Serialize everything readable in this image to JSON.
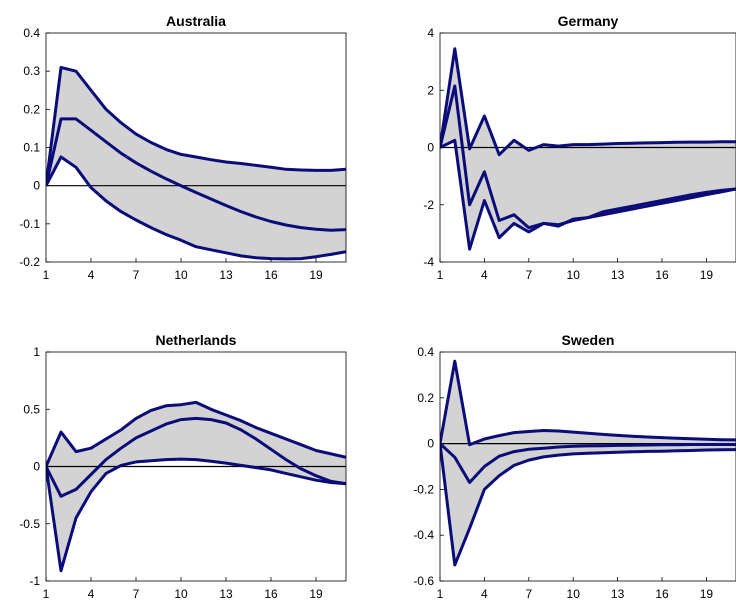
{
  "chart_data": [
    {
      "type": "line",
      "title": "Australia",
      "x": [
        1,
        2,
        3,
        4,
        5,
        6,
        7,
        8,
        9,
        10,
        11,
        12,
        13,
        14,
        15,
        16,
        17,
        18,
        19,
        20,
        21
      ],
      "xticks": [
        1,
        4,
        7,
        10,
        13,
        16,
        19
      ],
      "xlim": [
        1,
        21
      ],
      "ylim": [
        -0.2,
        0.4
      ],
      "yticks": [
        -0.2,
        -0.1,
        0,
        0.1,
        0.2,
        0.3,
        0.4
      ],
      "ytick_labels": [
        "-0.2",
        "-0.1",
        "0",
        "0.1",
        "0.2",
        "0.3",
        "0.4"
      ],
      "series": [
        {
          "values": [
            0,
            0.31,
            0.3,
            0.25,
            0.2,
            0.165,
            0.135,
            0.113,
            0.095,
            0.082,
            0.075,
            0.068,
            0.062,
            0.058,
            0.053,
            0.048,
            0.043,
            0.041,
            0.04,
            0.04,
            0.043
          ]
        },
        {
          "values": [
            0,
            0.175,
            0.175,
            0.145,
            0.115,
            0.085,
            0.06,
            0.038,
            0.018,
            0.0,
            -0.018,
            -0.035,
            -0.052,
            -0.068,
            -0.082,
            -0.094,
            -0.103,
            -0.11,
            -0.114,
            -0.117,
            -0.115
          ]
        },
        {
          "values": [
            0,
            0.075,
            0.048,
            -0.005,
            -0.04,
            -0.068,
            -0.09,
            -0.11,
            -0.128,
            -0.143,
            -0.16,
            -0.168,
            -0.176,
            -0.184,
            -0.189,
            -0.191,
            -0.192,
            -0.191,
            -0.186,
            -0.18,
            -0.173
          ]
        }
      ]
    },
    {
      "type": "line",
      "title": "Germany",
      "x": [
        1,
        2,
        3,
        4,
        5,
        6,
        7,
        8,
        9,
        10,
        11,
        12,
        13,
        14,
        15,
        16,
        17,
        18,
        19,
        20,
        21
      ],
      "xticks": [
        1,
        4,
        7,
        10,
        13,
        16,
        19
      ],
      "xlim": [
        1,
        21
      ],
      "ylim": [
        -4,
        4
      ],
      "yticks": [
        -4,
        -2,
        0,
        2,
        4
      ],
      "ytick_labels": [
        "-4",
        "-2",
        "0",
        "2",
        "4"
      ],
      "series": [
        {
          "values": [
            0,
            3.45,
            -0.05,
            1.1,
            -0.25,
            0.25,
            -0.1,
            0.1,
            0.05,
            0.1,
            0.1,
            0.12,
            0.14,
            0.15,
            0.16,
            0.17,
            0.18,
            0.19,
            0.19,
            0.2,
            0.2
          ]
        },
        {
          "values": [
            0,
            2.15,
            -2.0,
            -0.85,
            -2.55,
            -2.35,
            -2.8,
            -2.65,
            -2.7,
            -2.55,
            -2.45,
            -2.35,
            -2.25,
            -2.15,
            -2.05,
            -1.95,
            -1.85,
            -1.75,
            -1.65,
            -1.55,
            -1.45
          ]
        },
        {
          "values": [
            0,
            0.25,
            -3.55,
            -1.85,
            -3.15,
            -2.65,
            -2.95,
            -2.65,
            -2.75,
            -2.5,
            -2.45,
            -2.25,
            -2.15,
            -2.05,
            -1.95,
            -1.85,
            -1.75,
            -1.65,
            -1.57,
            -1.5,
            -1.45
          ]
        }
      ]
    },
    {
      "type": "line",
      "title": "Netherlands",
      "x": [
        1,
        2,
        3,
        4,
        5,
        6,
        7,
        8,
        9,
        10,
        11,
        12,
        13,
        14,
        15,
        16,
        17,
        18,
        19,
        20,
        21
      ],
      "xticks": [
        1,
        4,
        7,
        10,
        13,
        16,
        19
      ],
      "xlim": [
        1,
        21
      ],
      "ylim": [
        -1,
        1
      ],
      "yticks": [
        -1,
        -0.5,
        0,
        0.5,
        1
      ],
      "ytick_labels": [
        "-1",
        "-0.5",
        "0",
        "0.5",
        "1"
      ],
      "series": [
        {
          "values": [
            0,
            0.3,
            0.13,
            0.16,
            0.24,
            0.32,
            0.42,
            0.49,
            0.53,
            0.54,
            0.56,
            0.5,
            0.45,
            0.4,
            0.34,
            0.29,
            0.24,
            0.19,
            0.14,
            0.11,
            0.08
          ]
        },
        {
          "values": [
            0,
            -0.26,
            -0.2,
            -0.07,
            0.06,
            0.16,
            0.25,
            0.31,
            0.37,
            0.41,
            0.42,
            0.41,
            0.38,
            0.32,
            0.24,
            0.15,
            0.06,
            -0.02,
            -0.08,
            -0.13,
            -0.15
          ]
        },
        {
          "values": [
            0,
            -0.91,
            -0.45,
            -0.22,
            -0.06,
            0.01,
            0.04,
            0.05,
            0.06,
            0.065,
            0.06,
            0.045,
            0.03,
            0.01,
            -0.01,
            -0.03,
            -0.06,
            -0.09,
            -0.12,
            -0.14,
            -0.15
          ]
        }
      ]
    },
    {
      "type": "line",
      "title": "Sweden",
      "x": [
        1,
        2,
        3,
        4,
        5,
        6,
        7,
        8,
        9,
        10,
        11,
        12,
        13,
        14,
        15,
        16,
        17,
        18,
        19,
        20,
        21
      ],
      "xticks": [
        1,
        4,
        7,
        10,
        13,
        16,
        19
      ],
      "xlim": [
        1,
        21
      ],
      "ylim": [
        -0.6,
        0.4
      ],
      "yticks": [
        -0.6,
        -0.4,
        -0.2,
        0,
        0.2,
        0.4
      ],
      "ytick_labels": [
        "-0.6",
        "-0.4",
        "-0.2",
        "0",
        "0.2",
        "0.4"
      ],
      "series": [
        {
          "values": [
            0,
            0.36,
            -0.005,
            0.02,
            0.035,
            0.048,
            0.053,
            0.057,
            0.055,
            0.05,
            0.045,
            0.04,
            0.036,
            0.032,
            0.029,
            0.026,
            0.023,
            0.021,
            0.019,
            0.017,
            0.016
          ]
        },
        {
          "values": [
            0,
            -0.06,
            -0.17,
            -0.1,
            -0.055,
            -0.035,
            -0.025,
            -0.02,
            -0.015,
            -0.012,
            -0.01,
            -0.009,
            -0.008,
            -0.007,
            -0.006,
            -0.005,
            -0.005,
            -0.004,
            -0.004,
            -0.004,
            -0.004
          ]
        },
        {
          "values": [
            0,
            -0.53,
            -0.37,
            -0.2,
            -0.14,
            -0.095,
            -0.072,
            -0.058,
            -0.05,
            -0.045,
            -0.042,
            -0.04,
            -0.038,
            -0.036,
            -0.034,
            -0.033,
            -0.031,
            -0.03,
            -0.028,
            -0.027,
            -0.026
          ]
        }
      ]
    }
  ]
}
